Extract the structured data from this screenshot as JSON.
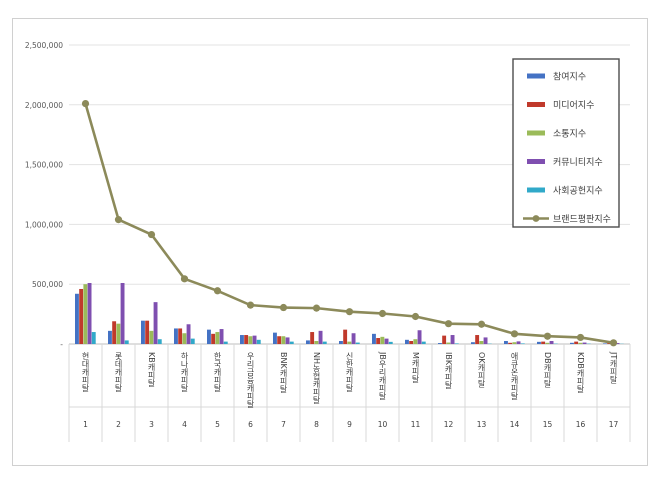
{
  "chart_data": {
    "type": "bar",
    "title": "",
    "xlabel": "",
    "ylabel": "",
    "ylim": [
      0,
      2500000
    ],
    "yticks": [
      0,
      500000,
      1000000,
      1500000,
      2000000,
      2500000
    ],
    "ytick_labels": [
      "-",
      "500,000",
      "1,000,000",
      "1,500,000",
      "2,000,000",
      "2,500,000"
    ],
    "categories": [
      "현대캐피탈",
      "롯데캐피탈",
      "KB캐피탈",
      "하나캐피탈",
      "한국캐피탈",
      "우리금융캐피탈",
      "BNK캐피탈",
      "NH농협캐피탈",
      "신한캐피탈",
      "JB우리캐피탈",
      "M캐피탈",
      "IBK캐피탈",
      "OK캐피탈",
      "애큐온캐피탈",
      "DB캐피탈",
      "KDB캐피탈",
      "JT캐피탈"
    ],
    "ranks": [
      "1",
      "2",
      "3",
      "4",
      "5",
      "6",
      "7",
      "8",
      "9",
      "10",
      "11",
      "12",
      "13",
      "14",
      "15",
      "16",
      "17"
    ],
    "series": [
      {
        "name": "참여지수",
        "color": "#4472c4",
        "values": [
          420000,
          110000,
          195000,
          130000,
          120000,
          75000,
          95000,
          30000,
          25000,
          85000,
          35000,
          8000,
          15000,
          25000,
          18000,
          10000,
          5000
        ]
      },
      {
        "name": "미디어지수",
        "color": "#c0392b",
        "values": [
          460000,
          190000,
          195000,
          130000,
          85000,
          75000,
          65000,
          100000,
          120000,
          50000,
          25000,
          70000,
          75000,
          10000,
          20000,
          20000,
          8000
        ]
      },
      {
        "name": "소통지수",
        "color": "#9bbb59",
        "values": [
          500000,
          170000,
          110000,
          90000,
          100000,
          65000,
          65000,
          25000,
          20000,
          60000,
          40000,
          12000,
          25000,
          15000,
          10000,
          10000,
          5000
        ]
      },
      {
        "name": "커뮤니티지수",
        "color": "#7f4fb0",
        "values": [
          510000,
          510000,
          350000,
          165000,
          125000,
          70000,
          55000,
          110000,
          90000,
          45000,
          115000,
          75000,
          55000,
          22000,
          25000,
          12000,
          8000
        ]
      },
      {
        "name": "사회공헌지수",
        "color": "#31a9c9",
        "values": [
          100000,
          30000,
          40000,
          45000,
          20000,
          35000,
          20000,
          20000,
          12000,
          18000,
          20000,
          5000,
          3000,
          5000,
          3000,
          3000,
          2000
        ]
      },
      {
        "name": "브랜드평판지수",
        "color": "#8c8a5a",
        "type": "line",
        "values": [
          2010000,
          1040000,
          915000,
          545000,
          445000,
          325000,
          305000,
          300000,
          270000,
          255000,
          230000,
          170000,
          165000,
          85000,
          65000,
          55000,
          10000
        ]
      }
    ],
    "legend_position": "top-right",
    "grid": true
  }
}
